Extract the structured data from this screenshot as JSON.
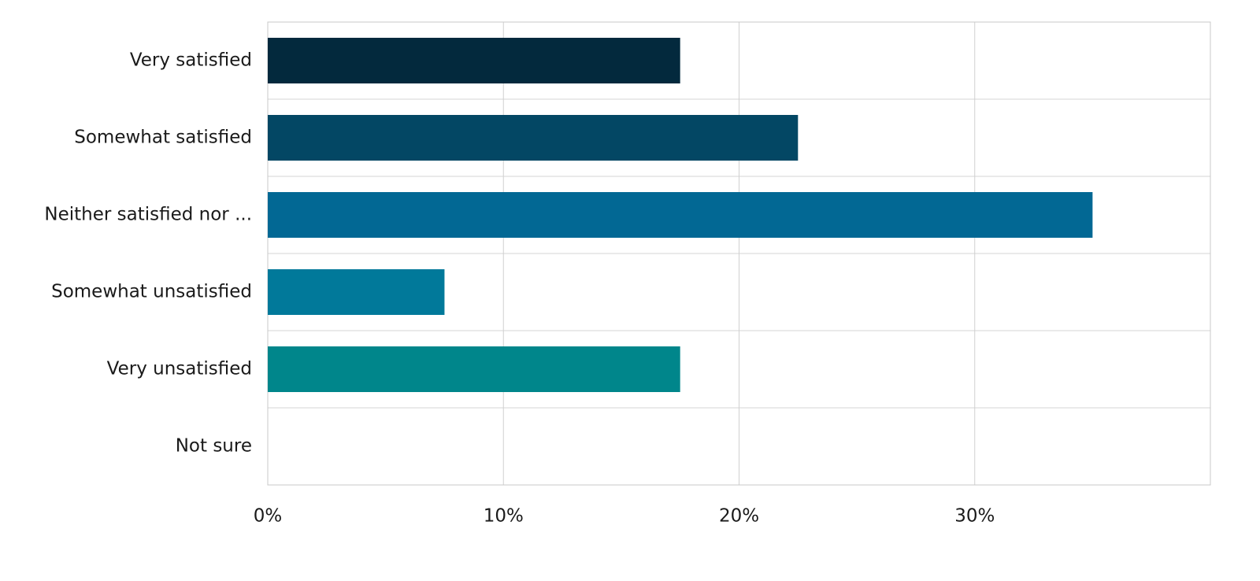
{
  "chart_data": {
    "type": "bar",
    "orientation": "horizontal",
    "categories": [
      "Very satisfied",
      "Somewhat satisfied",
      "Neither satisfied nor ...",
      "Somewhat unsatisfied",
      "Very unsatisfied",
      "Not sure"
    ],
    "values": [
      17.5,
      22.5,
      35,
      7.5,
      17.5,
      0
    ],
    "colors": [
      "#03293d",
      "#034764",
      "#026894",
      "#01799a",
      "#00868b",
      "#00928a"
    ],
    "xlim": [
      0,
      40
    ],
    "xticks": [
      {
        "value": 0,
        "label": "0%"
      },
      {
        "value": 10,
        "label": "10%"
      },
      {
        "value": 20,
        "label": "20%"
      },
      {
        "value": 30,
        "label": "30%"
      }
    ],
    "grid": true
  }
}
